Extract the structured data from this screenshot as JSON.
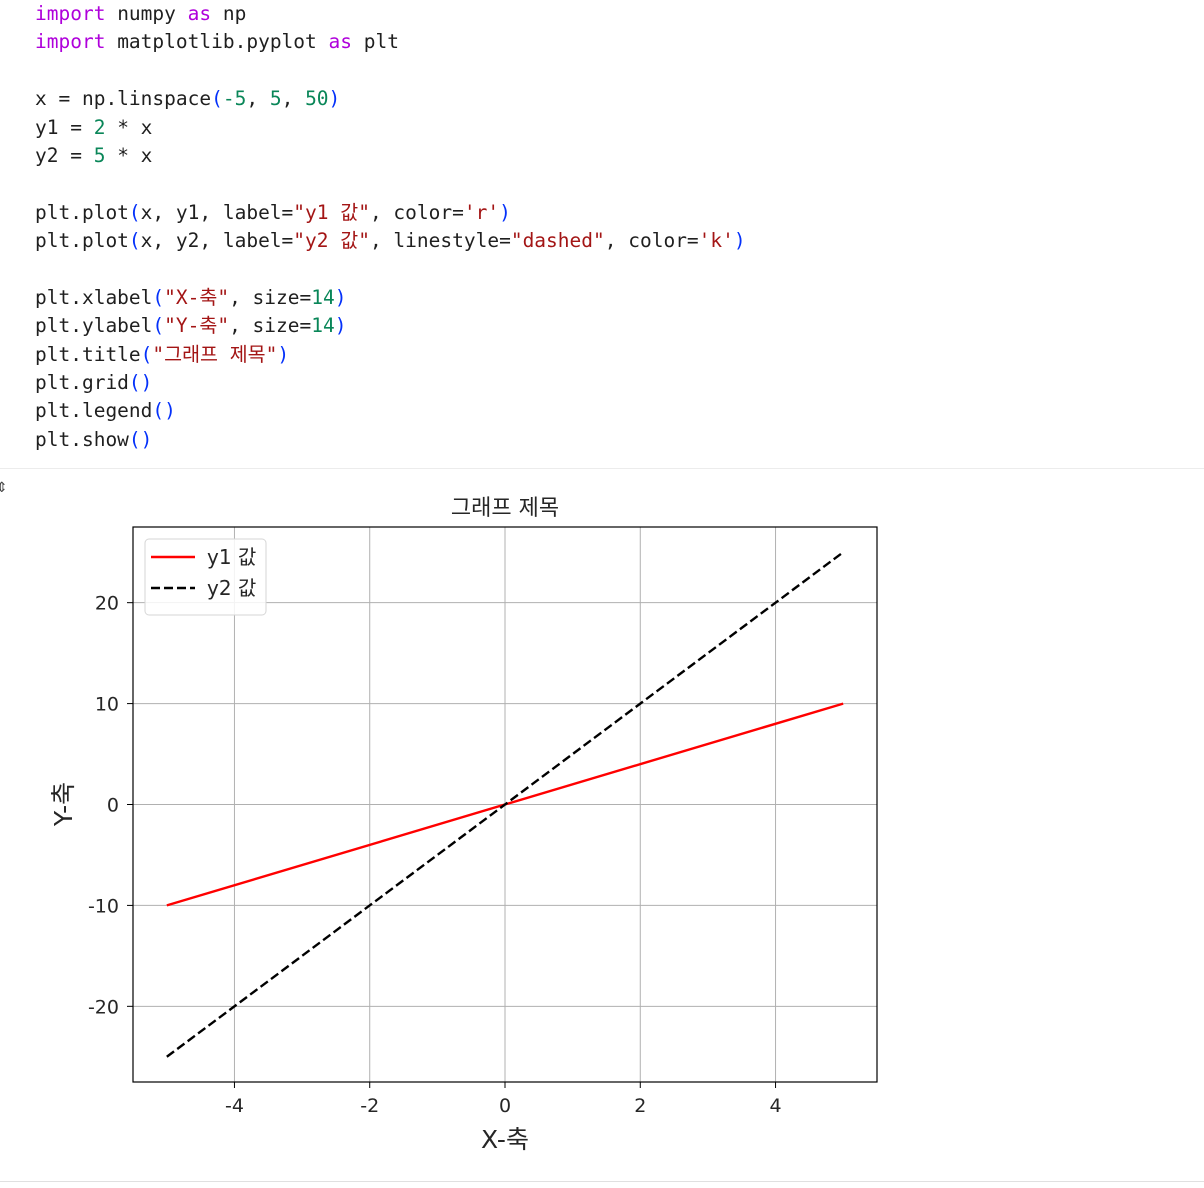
{
  "code": {
    "lines": [
      [
        {
          "t": "import",
          "c": "kw"
        },
        {
          "t": " numpy ",
          "c": ""
        },
        {
          "t": "as",
          "c": "kw"
        },
        {
          "t": " np",
          "c": ""
        }
      ],
      [
        {
          "t": "import",
          "c": "kw"
        },
        {
          "t": " matplotlib.pyplot ",
          "c": ""
        },
        {
          "t": "as",
          "c": "kw"
        },
        {
          "t": " plt",
          "c": ""
        }
      ],
      [],
      [
        {
          "t": "x = np.linspace",
          "c": ""
        },
        {
          "t": "(",
          "c": "br"
        },
        {
          "t": "-5",
          "c": "num"
        },
        {
          "t": ", ",
          "c": ""
        },
        {
          "t": "5",
          "c": "num"
        },
        {
          "t": ", ",
          "c": ""
        },
        {
          "t": "50",
          "c": "num"
        },
        {
          "t": ")",
          "c": "br"
        }
      ],
      [
        {
          "t": "y1 = ",
          "c": ""
        },
        {
          "t": "2",
          "c": "num"
        },
        {
          "t": " * x",
          "c": ""
        }
      ],
      [
        {
          "t": "y2 = ",
          "c": ""
        },
        {
          "t": "5",
          "c": "num"
        },
        {
          "t": " * x",
          "c": ""
        }
      ],
      [],
      [
        {
          "t": "plt.plot",
          "c": ""
        },
        {
          "t": "(",
          "c": "br"
        },
        {
          "t": "x, y1, label=",
          "c": ""
        },
        {
          "t": "\"y1 값\"",
          "c": "str"
        },
        {
          "t": ", color=",
          "c": ""
        },
        {
          "t": "'r'",
          "c": "str"
        },
        {
          "t": ")",
          "c": "br"
        }
      ],
      [
        {
          "t": "plt.plot",
          "c": ""
        },
        {
          "t": "(",
          "c": "br"
        },
        {
          "t": "x, y2, label=",
          "c": ""
        },
        {
          "t": "\"y2 값\"",
          "c": "str"
        },
        {
          "t": ", linestyle=",
          "c": ""
        },
        {
          "t": "\"dashed\"",
          "c": "str"
        },
        {
          "t": ", color=",
          "c": ""
        },
        {
          "t": "'k'",
          "c": "str"
        },
        {
          "t": ")",
          "c": "br"
        }
      ],
      [],
      [
        {
          "t": "plt.xlabel",
          "c": ""
        },
        {
          "t": "(",
          "c": "br"
        },
        {
          "t": "\"X-축\"",
          "c": "str"
        },
        {
          "t": ", size=",
          "c": ""
        },
        {
          "t": "14",
          "c": "num"
        },
        {
          "t": ")",
          "c": "br"
        }
      ],
      [
        {
          "t": "plt.ylabel",
          "c": ""
        },
        {
          "t": "(",
          "c": "br"
        },
        {
          "t": "\"Y-축\"",
          "c": "str"
        },
        {
          "t": ", size=",
          "c": ""
        },
        {
          "t": "14",
          "c": "num"
        },
        {
          "t": ")",
          "c": "br"
        }
      ],
      [
        {
          "t": "plt.title",
          "c": ""
        },
        {
          "t": "(",
          "c": "br"
        },
        {
          "t": "\"그래프 제목\"",
          "c": "str"
        },
        {
          "t": ")",
          "c": "br"
        }
      ],
      [
        {
          "t": "plt.grid",
          "c": ""
        },
        {
          "t": "()",
          "c": "br"
        }
      ],
      [
        {
          "t": "plt.legend",
          "c": ""
        },
        {
          "t": "()",
          "c": "br"
        }
      ],
      [
        {
          "t": "plt.show",
          "c": ""
        },
        {
          "t": "()",
          "c": "br"
        }
      ]
    ]
  },
  "output": {
    "toggle_glyph": "⇕"
  },
  "chart_data": {
    "type": "line",
    "title": "그래프 제목",
    "xlabel": "X-축",
    "ylabel": "Y-축",
    "xlim": [
      -5.5,
      5.5
    ],
    "ylim": [
      -27.5,
      27.5
    ],
    "xticks": [
      -4,
      -2,
      0,
      2,
      4
    ],
    "xtick_labels": [
      "-4",
      "-2",
      "0",
      "2",
      "4"
    ],
    "yticks": [
      -20,
      -10,
      0,
      10,
      20
    ],
    "ytick_labels": [
      "-20",
      "-10",
      "0",
      "10",
      "20"
    ],
    "grid": true,
    "legend_position": "upper-left",
    "series": [
      {
        "name": "y1 값",
        "x": [
          -5,
          5
        ],
        "y": [
          -10,
          10
        ],
        "color": "#ff0000",
        "linestyle": "solid"
      },
      {
        "name": "y2 값",
        "x": [
          -5,
          5
        ],
        "y": [
          -25,
          25
        ],
        "color": "#000000",
        "linestyle": "dashed"
      }
    ]
  }
}
